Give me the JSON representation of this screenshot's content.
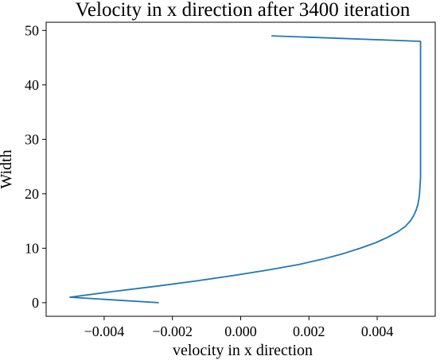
{
  "chart_data": {
    "type": "line",
    "title": "Velocity in x direction after 3400 iteration",
    "xlabel": "velocity in x direction",
    "ylabel": "Width",
    "xlim": [
      -0.0057,
      0.0057
    ],
    "ylim": [
      -2.5,
      51.5
    ],
    "xticks": [
      -0.004,
      -0.002,
      0.0,
      0.002,
      0.004
    ],
    "xtick_labels": [
      "−0.004",
      "−0.002",
      "0.000",
      "0.002",
      "0.004"
    ],
    "yticks": [
      0,
      10,
      20,
      30,
      40,
      50
    ],
    "ytick_labels": [
      "0",
      "10",
      "20",
      "30",
      "40",
      "50"
    ],
    "grid": false,
    "series": [
      {
        "color": "#1f77b4",
        "x": [
          -0.0024,
          -0.005,
          -0.0038,
          -0.0025,
          -0.0013,
          -0.0002,
          0.0008,
          0.0017,
          0.0024,
          0.003,
          0.0035,
          0.00395,
          0.0043,
          0.0046,
          0.00482,
          0.00497,
          0.00507,
          0.00514,
          0.00519,
          0.00522,
          0.00524,
          0.00525,
          0.00526,
          0.00527,
          0.00527,
          0.00527,
          0.00527,
          0.00527,
          0.00527,
          0.00527,
          0.00527,
          0.00527,
          0.00527,
          0.00527,
          0.00527,
          0.00527,
          0.00527,
          0.00527,
          0.00527,
          0.00527,
          0.00527,
          0.00527,
          0.00527,
          0.00527,
          0.00527,
          0.00527,
          0.00527,
          0.00527,
          0.00527,
          0.0009
        ],
        "y": [
          0,
          1,
          2,
          3,
          4,
          5,
          6,
          7,
          8,
          9,
          10,
          11,
          12,
          13,
          14,
          15,
          16,
          17,
          18,
          19,
          20,
          21,
          22,
          23,
          24,
          25,
          26,
          27,
          28,
          29,
          30,
          31,
          32,
          33,
          34,
          35,
          36,
          37,
          38,
          39,
          40,
          41,
          42,
          43,
          44,
          45,
          46,
          47,
          48,
          49
        ]
      }
    ]
  }
}
